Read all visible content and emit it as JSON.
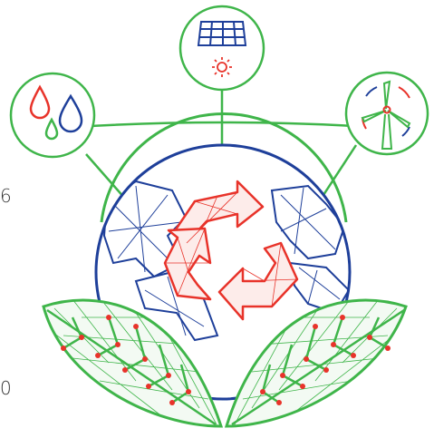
{
  "edge_labels": {
    "upper": "6",
    "lower": "0"
  },
  "illustration": {
    "icons": [
      "water-drops-icon",
      "solar-panel-icon",
      "sun-icon",
      "wind-turbine-icon",
      "recycle-icon",
      "globe-icon",
      "leaf-icon"
    ]
  },
  "colors": {
    "green": "#3fb54a",
    "blue": "#1e3f9a",
    "red": "#e8332a"
  }
}
